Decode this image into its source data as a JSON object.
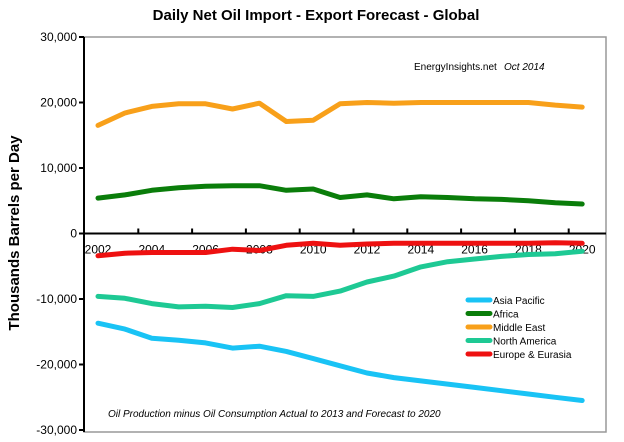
{
  "chart_data": {
    "type": "line",
    "title": "Daily Net Oil  Import - Export Forecast  - Global",
    "xlabel": "",
    "ylabel": "Thousands Barrels per Day",
    "ylim": [
      -30000,
      30000
    ],
    "yticks": [
      "30,000",
      "20,000",
      "10,000",
      "0",
      "-10,000",
      "-20,000",
      "-30,000"
    ],
    "ytick_values": [
      30000,
      20000,
      10000,
      0,
      -10000,
      -20000,
      -30000
    ],
    "xtick_labels": [
      "2002",
      "2004",
      "2006",
      "2008",
      "2010",
      "2012",
      "2014",
      "2016",
      "2018",
      "2020"
    ],
    "x": [
      2002,
      2003,
      2004,
      2005,
      2006,
      2007,
      2008,
      2009,
      2010,
      2011,
      2012,
      2013,
      2014,
      2015,
      2016,
      2017,
      2018,
      2019,
      2020
    ],
    "series": [
      {
        "name": "Asia Pacific",
        "color": "#19c3f5",
        "values": [
          -13700,
          -14600,
          -16000,
          -16300,
          -16700,
          -17500,
          -17200,
          -18000,
          -19100,
          -20200,
          -21300,
          -22000,
          -22500,
          -23000,
          -23500,
          -24000,
          -24500,
          -25000,
          -25500
        ]
      },
      {
        "name": "Africa",
        "color": "#0a7d0a",
        "values": [
          5400,
          5900,
          6600,
          7000,
          7200,
          7300,
          7300,
          6600,
          6800,
          5500,
          5900,
          5300,
          5600,
          5500,
          5300,
          5200,
          5000,
          4700,
          4500
        ]
      },
      {
        "name": "Middle East",
        "color": "#f8a01a",
        "values": [
          16500,
          18400,
          19400,
          19800,
          19800,
          19000,
          19900,
          17100,
          17300,
          19800,
          20000,
          19900,
          20000,
          20000,
          20000,
          20000,
          20000,
          19600,
          19300
        ]
      },
      {
        "name": "North America",
        "color": "#1ec994",
        "values": [
          -9600,
          -9900,
          -10700,
          -11200,
          -11100,
          -11300,
          -10700,
          -9500,
          -9600,
          -8800,
          -7400,
          -6500,
          -5100,
          -4300,
          -3900,
          -3500,
          -3200,
          -3100,
          -2700
        ]
      },
      {
        "name": "Europe & Eurasia",
        "color": "#ee1111",
        "values": [
          -3400,
          -3000,
          -2900,
          -2900,
          -2900,
          -2400,
          -2600,
          -1800,
          -1500,
          -1800,
          -1600,
          -1500,
          -1500,
          -1500,
          -1500,
          -1500,
          -1500,
          -1400,
          -1500
        ]
      }
    ],
    "legend_position": "right",
    "annotations": {
      "source": "EnergyInsights.net",
      "date": "Oct 2014",
      "footnote": "Oil Production minus Oil Consumption Actual to 2013 and Forecast to 2020"
    },
    "grid": false
  }
}
